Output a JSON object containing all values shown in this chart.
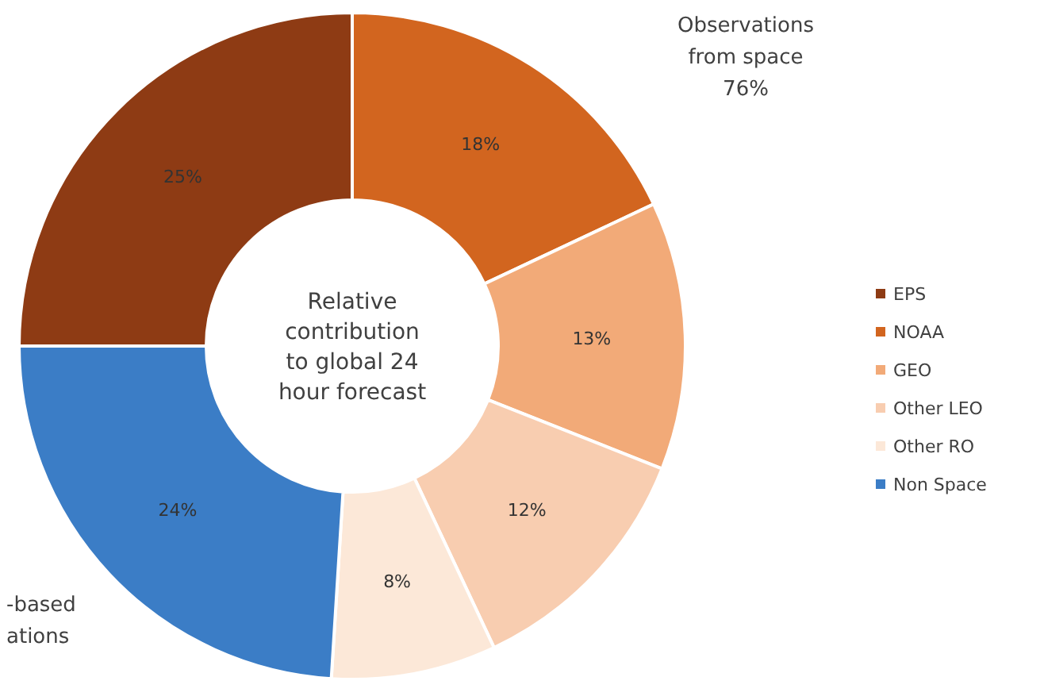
{
  "chart_data": {
    "type": "donut",
    "title": "Relative contribution to global 24 hour forecast",
    "categories": [
      "EPS",
      "NOAA",
      "GEO",
      "Other LEO",
      "Other RO",
      "Non Space"
    ],
    "values": [
      25,
      18,
      13,
      12,
      8,
      24
    ],
    "colors": [
      "#8e3b14",
      "#d2651f",
      "#f2aa78",
      "#f8cdb0",
      "#fce8d8",
      "#3b7dc6"
    ],
    "value_labels": [
      "25%",
      "18%",
      "13%",
      "12%",
      "8%",
      "24%"
    ],
    "legend": "right",
    "annotations": [
      "Observations\nfrom space\n76%",
      "-based\nations"
    ]
  }
}
